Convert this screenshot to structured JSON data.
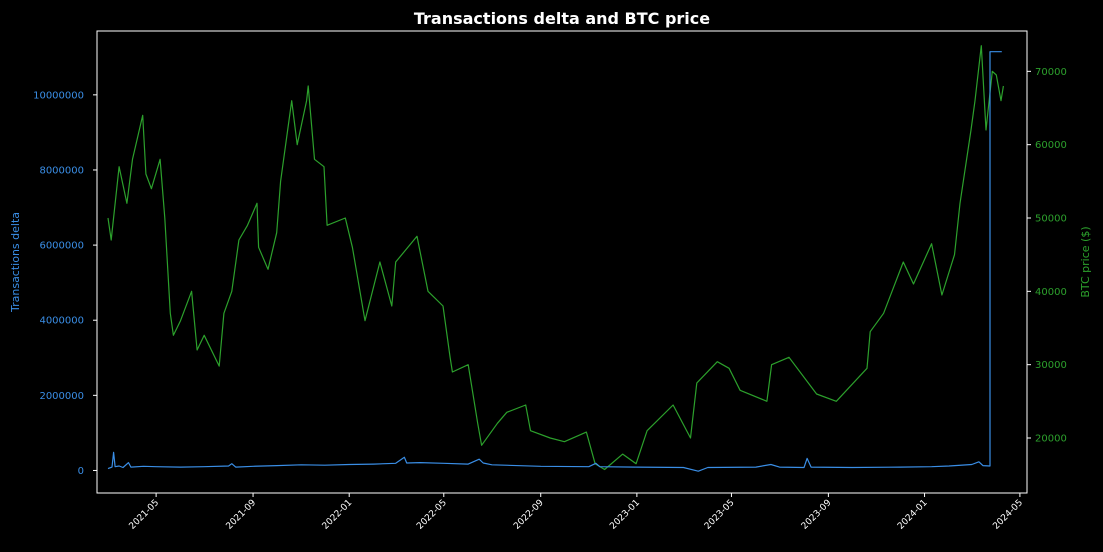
{
  "chart_data": {
    "type": "line",
    "title": "Transactions delta and BTC price",
    "colors": {
      "background": "#000000",
      "delta": "#3a8ee6",
      "price": "#2ca02c",
      "text": "#ffffff"
    },
    "x_axis": {
      "type": "date",
      "range": [
        "2021-02-15",
        "2024-05-10"
      ],
      "ticks": [
        "2021-05-01",
        "2021-09-01",
        "2022-01-01",
        "2022-05-01",
        "2022-09-01",
        "2023-01-01",
        "2023-05-01",
        "2023-09-01",
        "2024-01-01",
        "2024-05-01"
      ],
      "tick_labels": [
        "2021-05",
        "2021-09",
        "2022-01",
        "2022-05",
        "2022-09",
        "2023-01",
        "2023-05",
        "2023-09",
        "2024-01",
        "2024-05"
      ]
    },
    "y_left": {
      "label": "Transactions delta",
      "range": [
        -600000,
        11700000
      ],
      "ticks": [
        0,
        2000000,
        4000000,
        6000000,
        8000000,
        10000000
      ],
      "tick_labels": [
        "0",
        "2000000",
        "4000000",
        "6000000",
        "8000000",
        "10000000"
      ]
    },
    "y_right": {
      "label": "BTC price ($)",
      "range": [
        12500,
        75500
      ],
      "ticks": [
        20000,
        30000,
        40000,
        50000,
        60000,
        70000
      ],
      "tick_labels": [
        "20000",
        "30000",
        "40000",
        "50000",
        "60000",
        "70000"
      ]
    },
    "series": [
      {
        "axis": "left",
        "points": [
          [
            "2021-03-01",
            50000
          ],
          [
            "2021-03-06",
            90000
          ],
          [
            "2021-03-08",
            480000
          ],
          [
            "2021-03-10",
            100000
          ],
          [
            "2021-03-15",
            120000
          ],
          [
            "2021-03-20",
            80000
          ],
          [
            "2021-03-27",
            210000
          ],
          [
            "2021-03-30",
            90000
          ],
          [
            "2021-04-15",
            110000
          ],
          [
            "2021-05-01",
            100000
          ],
          [
            "2021-06-01",
            90000
          ],
          [
            "2021-07-01",
            100000
          ],
          [
            "2021-08-01",
            120000
          ],
          [
            "2021-08-05",
            180000
          ],
          [
            "2021-08-10",
            90000
          ],
          [
            "2021-09-01",
            110000
          ],
          [
            "2021-10-01",
            130000
          ],
          [
            "2021-11-01",
            150000
          ],
          [
            "2021-12-01",
            140000
          ],
          [
            "2022-01-01",
            160000
          ],
          [
            "2022-02-01",
            170000
          ],
          [
            "2022-03-01",
            190000
          ],
          [
            "2022-03-12",
            350000
          ],
          [
            "2022-03-15",
            200000
          ],
          [
            "2022-04-01",
            210000
          ],
          [
            "2022-05-01",
            190000
          ],
          [
            "2022-06-01",
            170000
          ],
          [
            "2022-06-15",
            300000
          ],
          [
            "2022-06-20",
            200000
          ],
          [
            "2022-07-01",
            150000
          ],
          [
            "2022-09-01",
            110000
          ],
          [
            "2022-11-01",
            100000
          ],
          [
            "2022-11-10",
            190000
          ],
          [
            "2022-11-15",
            100000
          ],
          [
            "2023-01-01",
            90000
          ],
          [
            "2023-03-01",
            80000
          ],
          [
            "2023-03-20",
            -20000
          ],
          [
            "2023-04-01",
            80000
          ],
          [
            "2023-06-01",
            90000
          ],
          [
            "2023-06-20",
            160000
          ],
          [
            "2023-07-01",
            90000
          ],
          [
            "2023-08-01",
            80000
          ],
          [
            "2023-08-05",
            320000
          ],
          [
            "2023-08-10",
            90000
          ],
          [
            "2023-10-01",
            80000
          ],
          [
            "2023-12-01",
            90000
          ],
          [
            "2024-01-10",
            100000
          ],
          [
            "2024-02-01",
            120000
          ],
          [
            "2024-03-01",
            160000
          ],
          [
            "2024-03-10",
            230000
          ],
          [
            "2024-03-15",
            130000
          ],
          [
            "2024-03-24",
            120000
          ],
          [
            "2024-03-24",
            11150000
          ],
          [
            "2024-04-08",
            11150000
          ]
        ]
      },
      {
        "axis": "right",
        "points": [
          [
            "2021-03-01",
            50000
          ],
          [
            "2021-03-05",
            47000
          ],
          [
            "2021-03-15",
            57000
          ],
          [
            "2021-03-25",
            52000
          ],
          [
            "2021-04-01",
            58000
          ],
          [
            "2021-04-14",
            64000
          ],
          [
            "2021-04-18",
            56000
          ],
          [
            "2021-04-25",
            54000
          ],
          [
            "2021-05-06",
            58000
          ],
          [
            "2021-05-12",
            50000
          ],
          [
            "2021-05-19",
            37000
          ],
          [
            "2021-05-23",
            34000
          ],
          [
            "2021-06-01",
            36000
          ],
          [
            "2021-06-15",
            40000
          ],
          [
            "2021-06-22",
            32000
          ],
          [
            "2021-07-01",
            34000
          ],
          [
            "2021-07-20",
            29800
          ],
          [
            "2021-07-26",
            37000
          ],
          [
            "2021-08-05",
            40000
          ],
          [
            "2021-08-14",
            47000
          ],
          [
            "2021-08-25",
            49000
          ],
          [
            "2021-09-06",
            52000
          ],
          [
            "2021-09-08",
            46000
          ],
          [
            "2021-09-20",
            43000
          ],
          [
            "2021-10-01",
            48000
          ],
          [
            "2021-10-06",
            55000
          ],
          [
            "2021-10-20",
            66000
          ],
          [
            "2021-10-27",
            60000
          ],
          [
            "2021-11-08",
            66000
          ],
          [
            "2021-11-10",
            68000
          ],
          [
            "2021-11-18",
            58000
          ],
          [
            "2021-11-30",
            57000
          ],
          [
            "2021-12-04",
            49000
          ],
          [
            "2021-12-27",
            50000
          ],
          [
            "2022-01-05",
            46000
          ],
          [
            "2022-01-21",
            36000
          ],
          [
            "2022-02-09",
            44000
          ],
          [
            "2022-02-24",
            38000
          ],
          [
            "2022-03-01",
            44000
          ],
          [
            "2022-03-28",
            47500
          ],
          [
            "2022-04-11",
            40000
          ],
          [
            "2022-04-30",
            38000
          ],
          [
            "2022-05-09",
            31000
          ],
          [
            "2022-05-12",
            29000
          ],
          [
            "2022-06-01",
            30000
          ],
          [
            "2022-06-13",
            22000
          ],
          [
            "2022-06-18",
            19000
          ],
          [
            "2022-07-08",
            22000
          ],
          [
            "2022-07-20",
            23500
          ],
          [
            "2022-08-13",
            24500
          ],
          [
            "2022-08-19",
            21000
          ],
          [
            "2022-09-13",
            20000
          ],
          [
            "2022-10-01",
            19500
          ],
          [
            "2022-10-29",
            20800
          ],
          [
            "2022-11-09",
            16500
          ],
          [
            "2022-11-21",
            15700
          ],
          [
            "2022-12-14",
            17800
          ],
          [
            "2022-12-31",
            16500
          ],
          [
            "2023-01-14",
            21000
          ],
          [
            "2023-02-16",
            24500
          ],
          [
            "2023-03-10",
            20000
          ],
          [
            "2023-03-18",
            27500
          ],
          [
            "2023-04-13",
            30400
          ],
          [
            "2023-04-28",
            29500
          ],
          [
            "2023-05-12",
            26500
          ],
          [
            "2023-06-15",
            25000
          ],
          [
            "2023-06-21",
            30000
          ],
          [
            "2023-07-13",
            31000
          ],
          [
            "2023-08-17",
            26000
          ],
          [
            "2023-09-11",
            25000
          ],
          [
            "2023-10-20",
            29500
          ],
          [
            "2023-10-24",
            34500
          ],
          [
            "2023-11-10",
            37000
          ],
          [
            "2023-12-05",
            44000
          ],
          [
            "2023-12-18",
            41000
          ],
          [
            "2024-01-10",
            46500
          ],
          [
            "2024-01-23",
            39500
          ],
          [
            "2024-02-08",
            45000
          ],
          [
            "2024-02-15",
            52000
          ],
          [
            "2024-02-29",
            62000
          ],
          [
            "2024-03-05",
            66000
          ],
          [
            "2024-03-13",
            73500
          ],
          [
            "2024-03-19",
            62000
          ],
          [
            "2024-03-27",
            70000
          ],
          [
            "2024-04-01",
            69500
          ],
          [
            "2024-04-07",
            66000
          ],
          [
            "2024-04-10",
            68000
          ]
        ]
      }
    ]
  }
}
